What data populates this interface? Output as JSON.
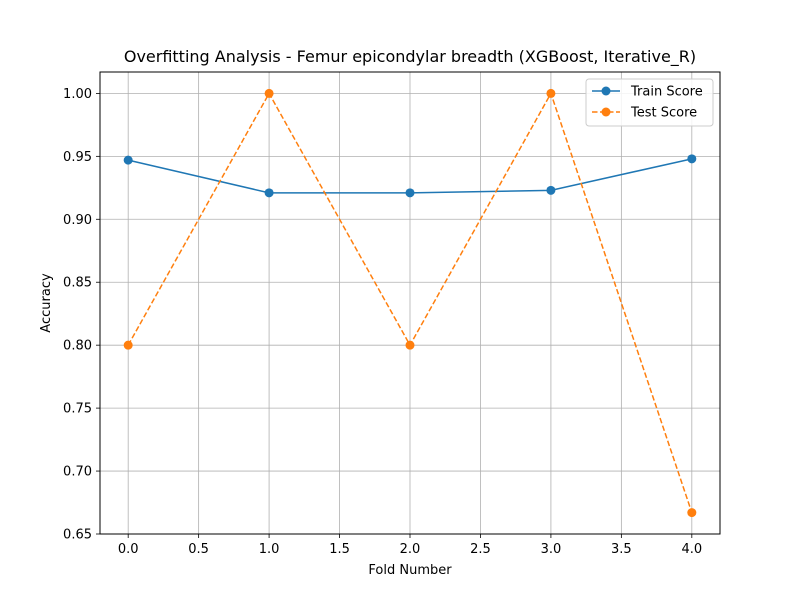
{
  "chart_data": {
    "type": "line",
    "title": "Overfitting Analysis - Femur epicondylar breadth (XGBoost, Iterative_R)",
    "xlabel": "Fold Number",
    "ylabel": "Accuracy",
    "xlim": [
      -0.2,
      4.2
    ],
    "ylim": [
      0.65,
      1.017
    ],
    "xticks": [
      0.0,
      0.5,
      1.0,
      1.5,
      2.0,
      2.5,
      3.0,
      3.5,
      4.0
    ],
    "xtick_labels": [
      "0.0",
      "0.5",
      "1.0",
      "1.5",
      "2.0",
      "2.5",
      "3.0",
      "3.5",
      "4.0"
    ],
    "yticks": [
      0.65,
      0.7,
      0.75,
      0.8,
      0.85,
      0.9,
      0.95,
      1.0
    ],
    "ytick_labels": [
      "0.65",
      "0.70",
      "0.75",
      "0.80",
      "0.85",
      "0.90",
      "0.95",
      "1.00"
    ],
    "grid": true,
    "legend_position": "top-right",
    "x": [
      0,
      1,
      2,
      3,
      4
    ],
    "series": [
      {
        "name": "Train Score",
        "values": [
          0.947,
          0.921,
          0.921,
          0.923,
          0.948
        ],
        "color": "#1f77b4",
        "line_style": "solid",
        "marker": "circle"
      },
      {
        "name": "Test Score",
        "values": [
          0.8,
          1.0,
          0.8,
          1.0,
          0.667
        ],
        "color": "#ff7f0e",
        "line_style": "dashed",
        "marker": "circle"
      }
    ]
  }
}
